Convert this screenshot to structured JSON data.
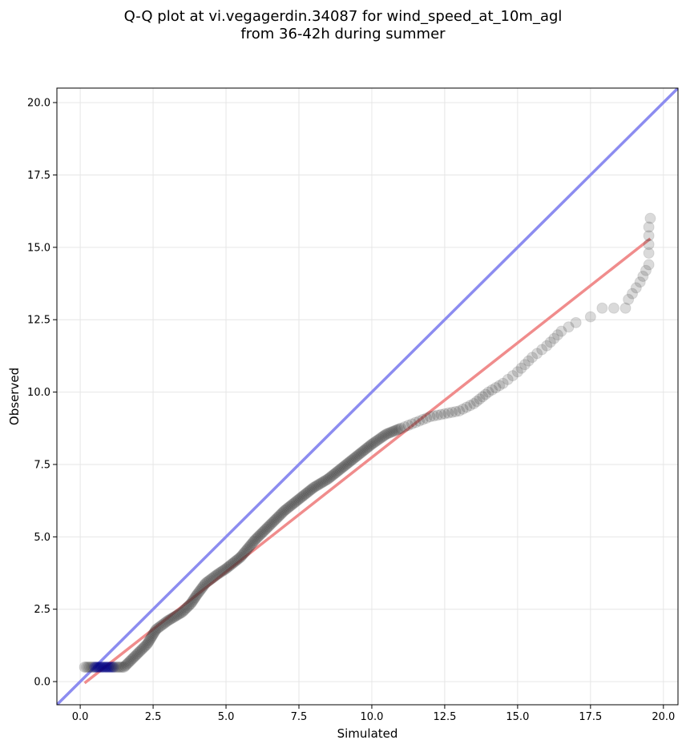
{
  "chart_data": {
    "type": "scatter",
    "title": [
      "Q-Q plot at vi.vegagerdin.34087 for wind_speed_at_10m_agl",
      "from 36-42h during summer"
    ],
    "xlabel": "Simulated",
    "ylabel": "Observed",
    "xlim": [
      -0.8,
      20.5
    ],
    "ylim": [
      -0.8,
      20.5
    ],
    "xticks": [
      0.0,
      2.5,
      5.0,
      7.5,
      10.0,
      12.5,
      15.0,
      17.5,
      20.0
    ],
    "yticks": [
      0.0,
      2.5,
      5.0,
      7.5,
      10.0,
      12.5,
      15.0,
      17.5,
      20.0
    ],
    "xtick_labels": [
      "0.0",
      "2.5",
      "5.0",
      "7.5",
      "10.0",
      "12.5",
      "15.0",
      "17.5",
      "20.0"
    ],
    "ytick_labels": [
      "0.0",
      "2.5",
      "5.0",
      "7.5",
      "10.0",
      "12.5",
      "15.0",
      "17.5",
      "20.0"
    ],
    "grid": true,
    "point_color": "#333333",
    "low_point_color": "#000080",
    "reference_line": {
      "color": "#8c8cf0",
      "from": [
        -0.8,
        -0.8
      ],
      "to": [
        20.5,
        20.5
      ]
    },
    "fit_line": {
      "color": "#f08c8c",
      "from": [
        0.15,
        -0.05
      ],
      "to": [
        19.55,
        15.3
      ]
    },
    "curve": [
      [
        0.15,
        0.5
      ],
      [
        0.5,
        0.5
      ],
      [
        1.5,
        0.5
      ],
      [
        1.75,
        0.75
      ],
      [
        2.0,
        1.0
      ],
      [
        2.3,
        1.3
      ],
      [
        2.6,
        1.8
      ],
      [
        3.0,
        2.1
      ],
      [
        3.5,
        2.4
      ],
      [
        3.8,
        2.7
      ],
      [
        4.0,
        3.0
      ],
      [
        4.3,
        3.4
      ],
      [
        4.7,
        3.7
      ],
      [
        5.0,
        3.9
      ],
      [
        5.5,
        4.3
      ],
      [
        6.0,
        4.9
      ],
      [
        6.5,
        5.4
      ],
      [
        7.0,
        5.9
      ],
      [
        7.5,
        6.3
      ],
      [
        8.0,
        6.7
      ],
      [
        8.5,
        7.0
      ],
      [
        9.0,
        7.4
      ],
      [
        9.5,
        7.8
      ],
      [
        10.0,
        8.2
      ],
      [
        10.5,
        8.55
      ],
      [
        11.0,
        8.75
      ],
      [
        11.5,
        8.95
      ],
      [
        12.0,
        9.15
      ],
      [
        12.5,
        9.25
      ],
      [
        13.0,
        9.35
      ],
      [
        13.5,
        9.6
      ],
      [
        14.0,
        10.0
      ],
      [
        14.5,
        10.3
      ],
      [
        15.0,
        10.7
      ],
      [
        15.5,
        11.2
      ],
      [
        16.0,
        11.6
      ],
      [
        16.5,
        12.1
      ],
      [
        17.0,
        12.4
      ],
      [
        17.5,
        12.6
      ],
      [
        17.9,
        12.9
      ],
      [
        18.7,
        12.9
      ],
      [
        18.8,
        13.2
      ],
      [
        19.2,
        13.8
      ],
      [
        19.4,
        14.2
      ],
      [
        19.5,
        14.4
      ],
      [
        19.5,
        14.8
      ],
      [
        19.5,
        15.7
      ],
      [
        19.55,
        16.0
      ]
    ]
  }
}
